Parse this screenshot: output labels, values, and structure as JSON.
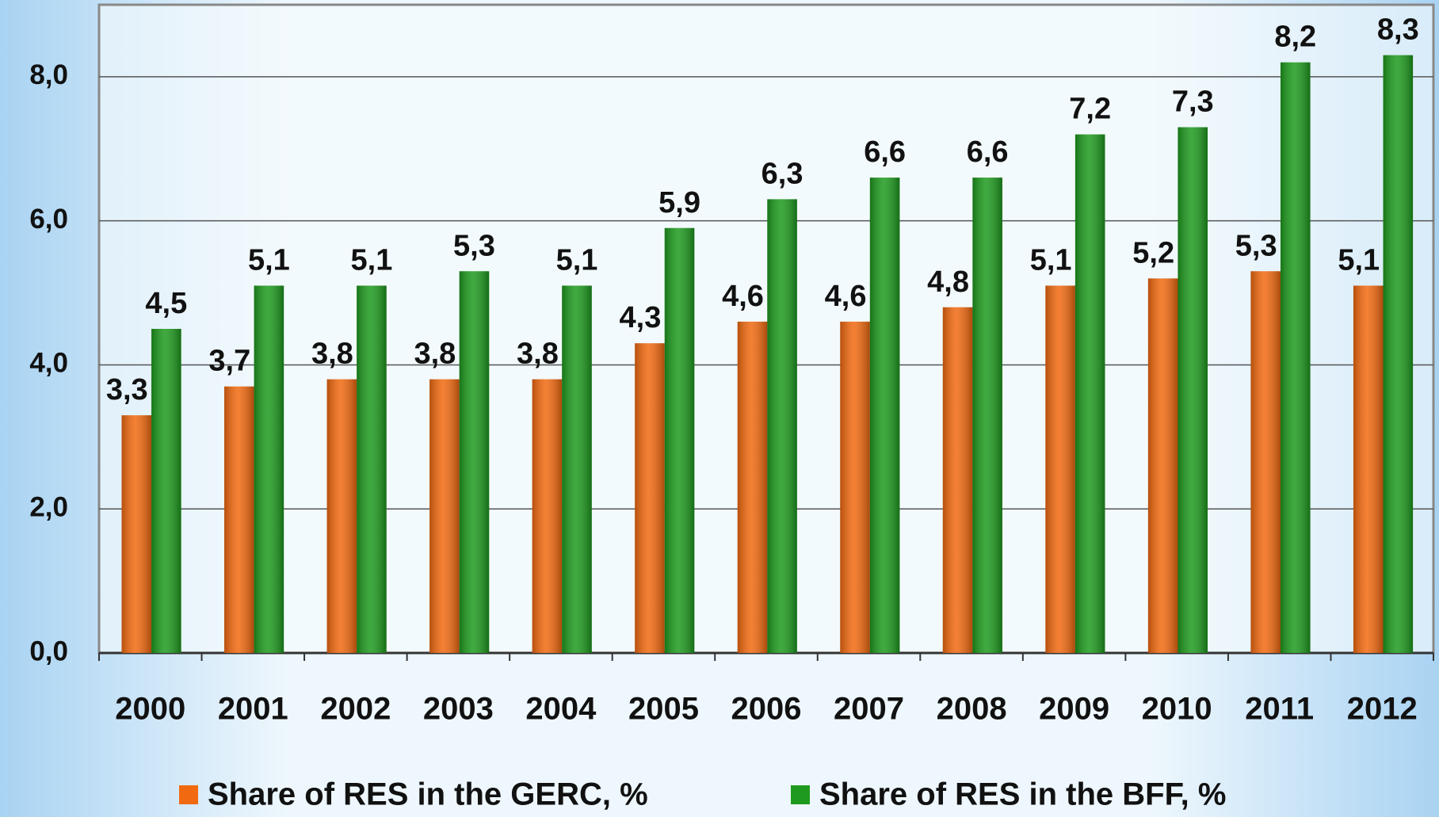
{
  "chart_data": {
    "type": "bar",
    "categories": [
      "2000",
      "2001",
      "2002",
      "2003",
      "2004",
      "2005",
      "2006",
      "2007",
      "2008",
      "2009",
      "2010",
      "2011",
      "2012"
    ],
    "series": [
      {
        "name": "Share of RES in the GERC, %",
        "color": "#f26a10",
        "values": [
          3.3,
          3.7,
          3.8,
          3.8,
          3.8,
          4.3,
          4.6,
          4.6,
          4.8,
          5.1,
          5.2,
          5.3,
          5.1
        ],
        "value_labels": [
          "3,3",
          "3,7",
          "3,8",
          "3,8",
          "3,8",
          "4,3",
          "4,6",
          "4,6",
          "4,8",
          "5,1",
          "5,2",
          "5,3",
          "5,1"
        ]
      },
      {
        "name": "Share of RES in the BFF, %",
        "color": "#1e9b1e",
        "values": [
          4.5,
          5.1,
          5.1,
          5.3,
          5.1,
          5.9,
          6.3,
          6.6,
          6.6,
          7.2,
          7.3,
          8.2,
          8.3
        ],
        "value_labels": [
          "4,5",
          "5,1",
          "5,1",
          "5,3",
          "5,1",
          "5,9",
          "6,3",
          "6,6",
          "6,6",
          "7,2",
          "7,3",
          "8,2",
          "8,3"
        ]
      }
    ],
    "ylim": [
      0,
      9
    ],
    "yticks": [
      {
        "value": 0,
        "label": "0,0"
      },
      {
        "value": 2,
        "label": "2,0"
      },
      {
        "value": 4,
        "label": "4,0"
      },
      {
        "value": 6,
        "label": "6,0"
      },
      {
        "value": 8,
        "label": "8,0"
      }
    ],
    "grid": true,
    "legend": "bottom"
  }
}
